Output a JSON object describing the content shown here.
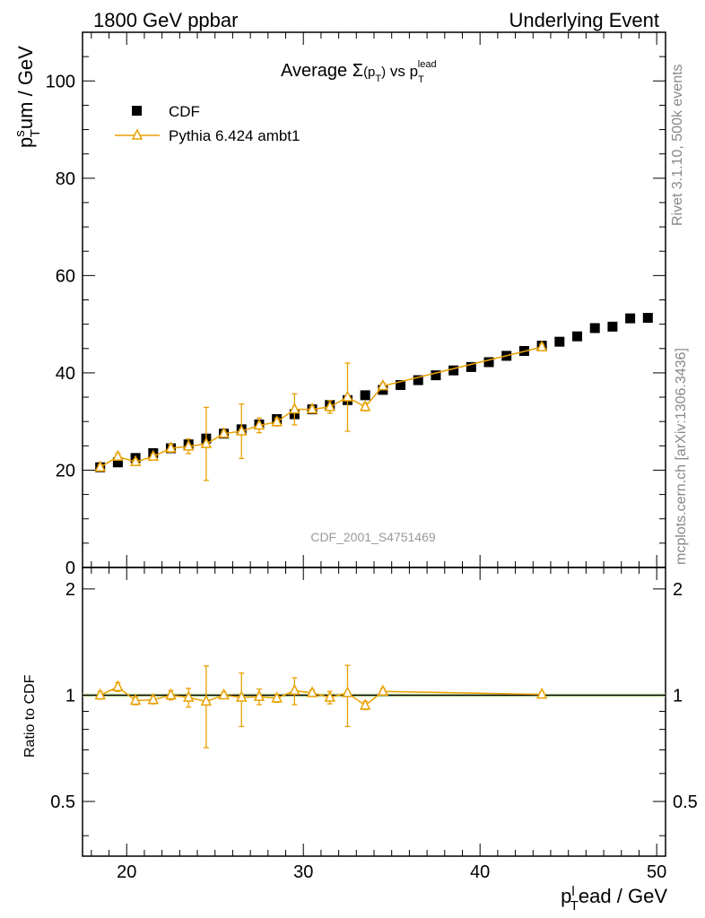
{
  "header": {
    "left": "1800 GeV ppbar",
    "right": "Underlying Event"
  },
  "side": {
    "rivet": "Rivet 3.1.10,  500k events",
    "mcplots": "mcplots.cern.ch [arXiv:1306.3436]"
  },
  "watermark": "CDF_2001_S4751469",
  "chart_data": [
    {
      "type": "scatter",
      "title": "Average Σ(pT) vs pTlead",
      "title_parts": {
        "a": "Average ",
        "sigma": "Σ",
        "paren_open": "(p",
        "sub": "T",
        "paren_close": ")",
        "vs": " vs p",
        "sub2": "T",
        "sup": "lead"
      },
      "ylabel": {
        "base": "p",
        "sup": "s",
        "sub": "T",
        "rest": "um / GeV"
      },
      "xlim": [
        17.5,
        50.5
      ],
      "ylim": [
        0,
        110
      ],
      "yticks": [
        0,
        20,
        40,
        60,
        80,
        100
      ],
      "ytick_labels": [
        "0",
        "20",
        "40",
        "60",
        "80",
        "100"
      ],
      "grid": false,
      "legend_position": "top-left",
      "series": [
        {
          "name": "CDF",
          "color": "#000000",
          "marker": "square",
          "x": [
            18.5,
            19.5,
            20.5,
            21.5,
            22.5,
            23.5,
            24.5,
            25.5,
            26.5,
            27.5,
            28.5,
            29.5,
            30.5,
            31.5,
            32.5,
            33.5,
            34.5,
            35.5,
            36.5,
            37.5,
            38.5,
            39.5,
            40.5,
            41.5,
            42.5,
            43.5,
            44.5,
            45.5,
            46.5,
            47.5,
            48.5,
            49.5
          ],
          "y": [
            20.6,
            21.6,
            22.5,
            23.5,
            24.5,
            25.3,
            26.5,
            27.5,
            28.4,
            29.4,
            30.5,
            31.5,
            32.5,
            33.4,
            34.4,
            35.4,
            36.5,
            37.5,
            38.5,
            39.5,
            40.5,
            41.2,
            42.2,
            43.5,
            44.5,
            45.6,
            46.4,
            47.5,
            49.2,
            49.5,
            51.2,
            51.3
          ]
        },
        {
          "name": "Pythia 6.424 ambt1",
          "color": "#E8A000",
          "marker": "open-triangle",
          "x": [
            18.5,
            19.5,
            20.5,
            21.5,
            22.5,
            23.5,
            24.5,
            25.5,
            26.5,
            27.5,
            28.5,
            29.5,
            30.5,
            31.5,
            32.5,
            33.5,
            34.5,
            43.5
          ],
          "y": [
            20.6,
            22.8,
            21.7,
            22.8,
            24.5,
            24.9,
            25.4,
            27.5,
            28.0,
            29.2,
            29.9,
            32.5,
            32.5,
            33.0,
            35.0,
            33.0,
            37.3,
            45.3
          ],
          "yerr": [
            0.5,
            0.6,
            0.5,
            0.5,
            0.8,
            1.5,
            7.5,
            0.6,
            5.6,
            1.5,
            0.8,
            3.2,
            0.6,
            1.3,
            7.0,
            0.8,
            0.6,
            0.6
          ]
        }
      ]
    },
    {
      "type": "line",
      "ylabel": "Ratio to CDF",
      "xlabel": {
        "base": "p",
        "sup": "l",
        "sub": "T",
        "rest": "ead / GeV"
      },
      "xlim": [
        17.5,
        50.5
      ],
      "ylim": [
        0.35,
        2.3
      ],
      "log_y": true,
      "xticks": [
        20,
        30,
        40,
        50
      ],
      "xtick_labels": [
        "20",
        "30",
        "40",
        "50"
      ],
      "yticks": [
        0.5,
        1,
        2
      ],
      "ytick_labels": [
        "0.5",
        "1",
        "2"
      ],
      "reference": 1.0,
      "band_color": "#C8F08C",
      "series": [
        {
          "name": "Pythia 6.424 ambt1",
          "color": "#E8A000",
          "x": [
            18.5,
            19.5,
            20.5,
            21.5,
            22.5,
            23.5,
            24.5,
            25.5,
            26.5,
            27.5,
            28.5,
            29.5,
            30.5,
            31.5,
            32.5,
            33.5,
            34.5,
            43.5
          ],
          "y": [
            1.0,
            1.055,
            0.965,
            0.97,
            1.0,
            0.985,
            0.96,
            1.0,
            0.985,
            0.99,
            0.98,
            1.03,
            1.015,
            0.985,
            1.015,
            0.935,
            1.025,
            1.005
          ],
          "yerr": [
            0.025,
            0.03,
            0.025,
            0.025,
            0.03,
            0.06,
            0.25,
            0.02,
            0.17,
            0.05,
            0.025,
            0.09,
            0.02,
            0.04,
            0.2,
            0.025,
            0.02,
            0.015
          ]
        }
      ]
    }
  ]
}
